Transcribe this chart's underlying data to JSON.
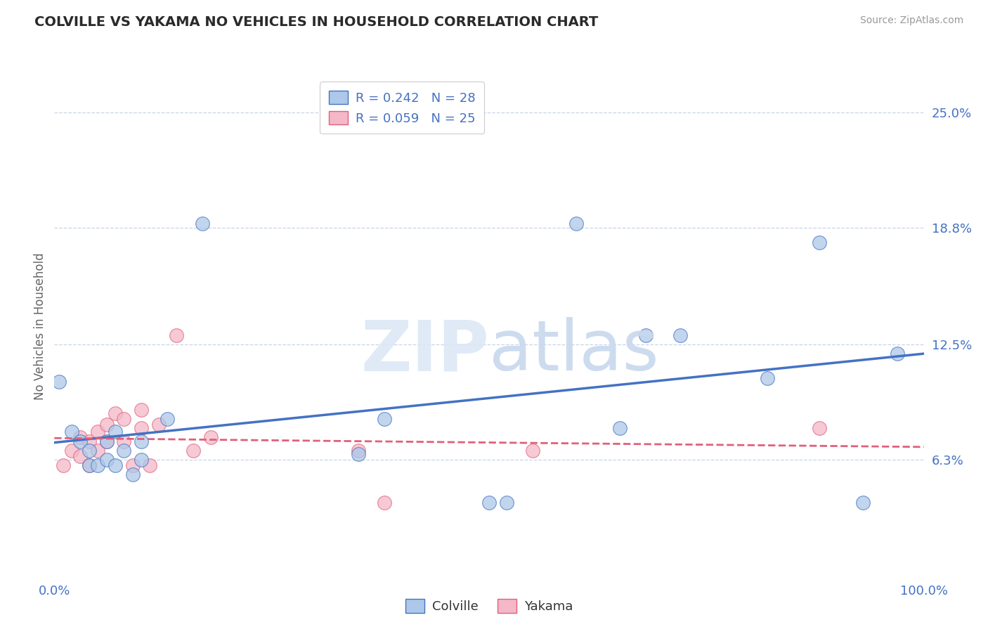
{
  "title": "COLVILLE VS YAKAMA NO VEHICLES IN HOUSEHOLD CORRELATION CHART",
  "source": "Source: ZipAtlas.com",
  "ylabel": "No Vehicles in Household",
  "ytick_labels": [
    "6.3%",
    "12.5%",
    "18.8%",
    "25.0%"
  ],
  "ytick_values": [
    0.063,
    0.125,
    0.188,
    0.25
  ],
  "colville_R": 0.242,
  "colville_N": 28,
  "yakama_R": 0.059,
  "yakama_N": 25,
  "colville_color": "#adc8e8",
  "colville_line_color": "#4472c4",
  "yakama_color": "#f4b8c8",
  "yakama_line_color": "#e0607a",
  "background_color": "#ffffff",
  "grid_color": "#c8d4e8",
  "xlim": [
    0.0,
    1.0
  ],
  "ylim": [
    0.0,
    0.27
  ],
  "colville_x": [
    0.005,
    0.02,
    0.03,
    0.04,
    0.04,
    0.05,
    0.06,
    0.06,
    0.07,
    0.07,
    0.08,
    0.09,
    0.1,
    0.1,
    0.13,
    0.17,
    0.35,
    0.38,
    0.5,
    0.52,
    0.6,
    0.65,
    0.68,
    0.72,
    0.82,
    0.88,
    0.93,
    0.97
  ],
  "colville_y": [
    0.105,
    0.078,
    0.073,
    0.068,
    0.06,
    0.06,
    0.073,
    0.063,
    0.078,
    0.06,
    0.068,
    0.055,
    0.073,
    0.063,
    0.085,
    0.19,
    0.066,
    0.085,
    0.04,
    0.04,
    0.19,
    0.08,
    0.13,
    0.13,
    0.107,
    0.18,
    0.04,
    0.12
  ],
  "yakama_x": [
    0.01,
    0.02,
    0.03,
    0.03,
    0.04,
    0.04,
    0.05,
    0.05,
    0.06,
    0.06,
    0.07,
    0.08,
    0.08,
    0.09,
    0.1,
    0.1,
    0.11,
    0.12,
    0.14,
    0.16,
    0.18,
    0.35,
    0.38,
    0.55,
    0.88
  ],
  "yakama_y": [
    0.06,
    0.068,
    0.075,
    0.065,
    0.073,
    0.06,
    0.078,
    0.068,
    0.082,
    0.073,
    0.088,
    0.085,
    0.073,
    0.06,
    0.08,
    0.09,
    0.06,
    0.082,
    0.13,
    0.068,
    0.075,
    0.068,
    0.04,
    0.068,
    0.08
  ]
}
